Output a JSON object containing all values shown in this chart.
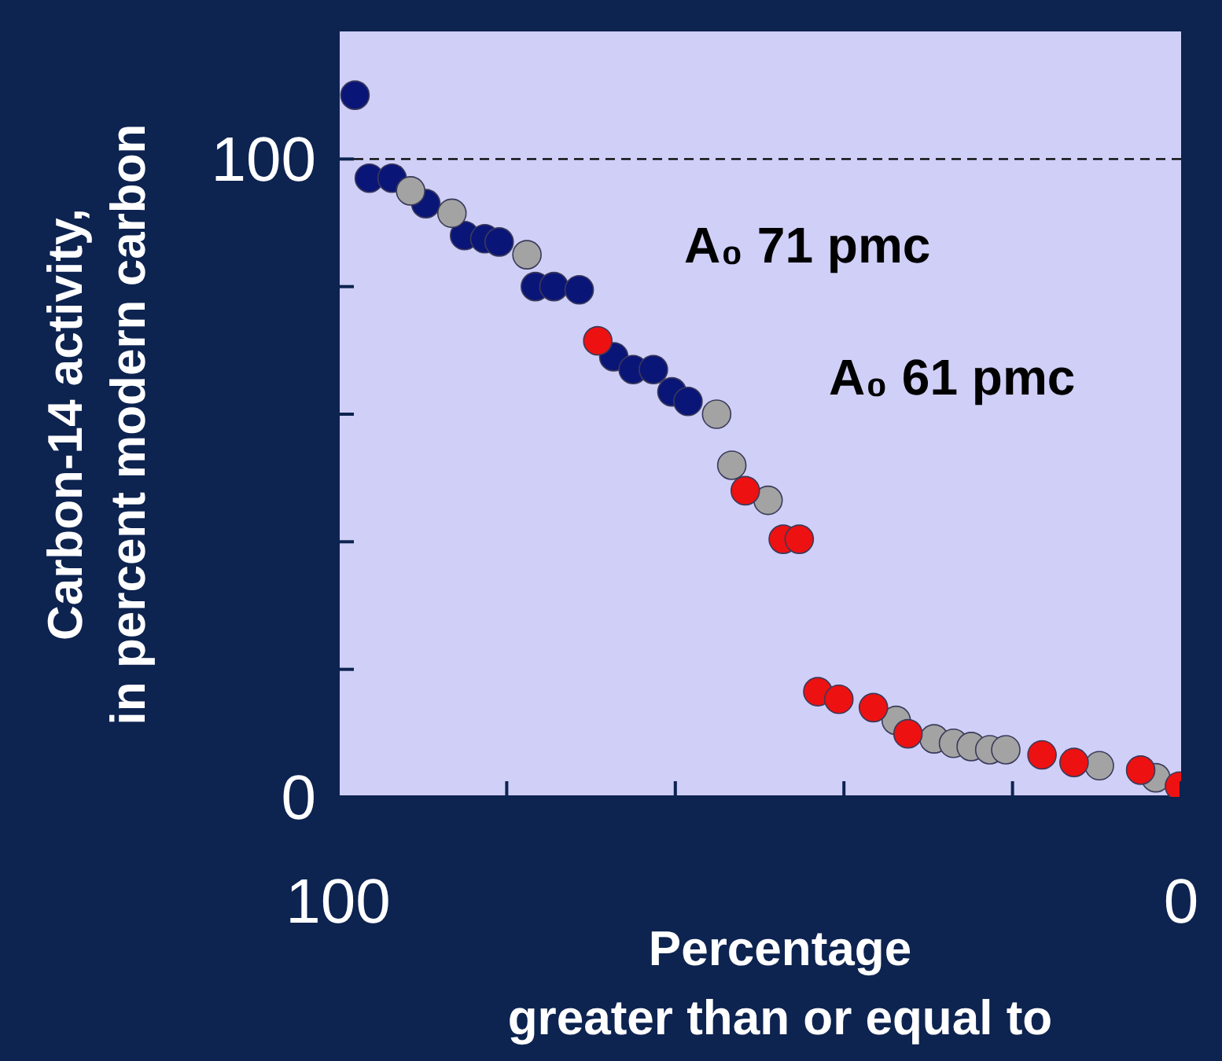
{
  "chart_data": {
    "type": "scatter",
    "xlabel": "Percentage\ngreater than or equal to",
    "ylabel": "Carbon-14 activity,\nin percent modern carbon",
    "annotations": [
      "A₀ 71 pmc",
      "A₀ 61 pmc"
    ],
    "xlim": [
      100,
      0
    ],
    "xticks": [
      100,
      {
        "value": 80,
        "label": null
      },
      {
        "value": 60,
        "label": null
      },
      {
        "value": 40,
        "label": null
      },
      {
        "value": 20,
        "label": null
      },
      0
    ],
    "ylim": [
      0,
      120
    ],
    "yticks": [
      0,
      {
        "value": 20,
        "label": null
      },
      {
        "value": 40,
        "label": null
      },
      {
        "value": 60,
        "label": null
      },
      {
        "value": 80,
        "label": null
      },
      100
    ],
    "grid": false,
    "legend": false,
    "marker": "circle",
    "ref_lines": [
      {
        "axis": "y",
        "value": 100,
        "color": "#000000",
        "line_style": "dashed"
      }
    ],
    "series": [
      {
        "color": "#0a1578",
        "x": [
          98,
          96.3,
          93.6,
          89.6,
          85,
          82.6,
          80.9,
          76.6,
          74.4,
          71.4,
          67.3,
          65,
          62.6,
          60.4,
          58.5
        ],
        "values": [
          110,
          97,
          97,
          93,
          88,
          87.5,
          87,
          80,
          80,
          79.5,
          69,
          67,
          67,
          63.5,
          62
        ]
      },
      {
        "color": "#a3a3a3",
        "x": [
          91.4,
          86.5,
          77.6,
          55.1,
          53.3,
          49,
          33.8,
          29.3,
          27,
          24.9,
          22.7,
          20.8,
          9.7,
          3
        ],
        "values": [
          95,
          91.5,
          85,
          60,
          52,
          46.5,
          12,
          9.1,
          8.4,
          7.9,
          7.4,
          7.4,
          4.9,
          3
        ]
      },
      {
        "color": "#ee1111",
        "x": [
          69.2,
          51.7,
          47.2,
          45.3,
          43.1,
          40.6,
          36.5,
          32.4,
          16.5,
          12.7,
          4.8,
          0.2
        ],
        "values": [
          71.5,
          48,
          40.4,
          40.4,
          16.5,
          15.3,
          14,
          9.9,
          6.6,
          5.4,
          4.2,
          1.7
        ]
      }
    ]
  }
}
